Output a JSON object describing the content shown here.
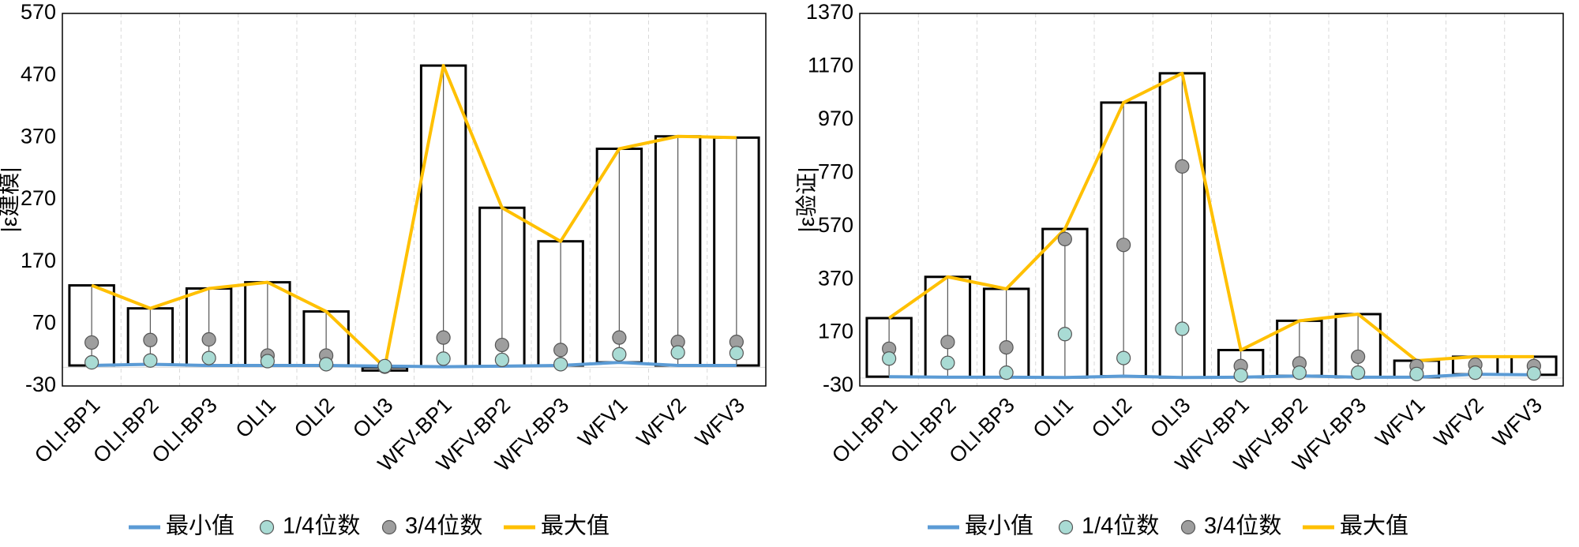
{
  "chart_data": [
    {
      "type": "box-range",
      "title": "",
      "xlabel": "",
      "ylabel": "|ε建模|",
      "ylim": [
        -30,
        570
      ],
      "yticks": [
        "-30",
        "70",
        "170",
        "270",
        "370",
        "470",
        "570"
      ],
      "categories": [
        "OLI-BP1",
        "OLI-BP2",
        "OLI-BP3",
        "OLI1",
        "OLI2",
        "OLI3",
        "WFV-BP1",
        "WFV-BP2",
        "WFV-BP3",
        "WFV1",
        "WFV2",
        "WFV3"
      ],
      "series": [
        {
          "name": "最小值",
          "values": [
            3,
            5,
            3,
            3,
            3,
            2,
            1,
            2,
            3,
            8,
            3,
            3
          ]
        },
        {
          "name": "1/4位数",
          "values": [
            8,
            11,
            15,
            10,
            5,
            2,
            14,
            12,
            5,
            21,
            24,
            23
          ]
        },
        {
          "name": "3/4位数",
          "values": [
            40,
            44,
            45,
            19,
            19,
            1,
            48,
            36,
            28,
            48,
            41,
            41
          ]
        },
        {
          "name": "最大值",
          "values": [
            132,
            95,
            127,
            137,
            90,
            0,
            486,
            257,
            203,
            352,
            372,
            370
          ]
        }
      ]
    },
    {
      "type": "box-range",
      "title": "",
      "xlabel": "",
      "ylabel": "|ε验证|",
      "ylim": [
        -30,
        1370
      ],
      "yticks": [
        "-30",
        "170",
        "370",
        "570",
        "770",
        "970",
        "1170",
        "1370"
      ],
      "categories": [
        "OLI-BP1",
        "OLI-BP2",
        "OLI-BP3",
        "OLI1",
        "OLI2",
        "OLI3",
        "WFV-BP1",
        "WFV-BP2",
        "WFV-BP3",
        "WFV1",
        "WFV2",
        "WFV3"
      ],
      "series": [
        {
          "name": "最小值",
          "values": [
            5,
            3,
            3,
            2,
            7,
            2,
            3,
            8,
            3,
            3,
            14,
            12
          ]
        },
        {
          "name": "1/4位数",
          "values": [
            73,
            57,
            20,
            165,
            75,
            185,
            10,
            20,
            20,
            15,
            20,
            17
          ]
        },
        {
          "name": "3/4位数",
          "values": [
            110,
            135,
            115,
            522,
            500,
            795,
            45,
            55,
            80,
            45,
            50,
            45
          ]
        },
        {
          "name": "最大值",
          "values": [
            225,
            380,
            335,
            560,
            1035,
            1145,
            105,
            215,
            240,
            65,
            80,
            80
          ]
        }
      ]
    }
  ],
  "legend": [
    {
      "label": "最小值",
      "kind": "line",
      "color": "#5b9bd5"
    },
    {
      "label": "1/4位数",
      "kind": "marker",
      "color": "#a9dbd4"
    },
    {
      "label": "3/4位数",
      "kind": "marker",
      "color": "#9e9e9e"
    },
    {
      "label": "最大值",
      "kind": "line",
      "color": "#ffc000"
    }
  ],
  "colors": {
    "min_line": "#5b9bd5",
    "max_line": "#ffc000",
    "q1_marker": "#a9dbd4",
    "q3_marker": "#9e9e9e",
    "box_stroke": "#000000",
    "grid": "#d9d9d9"
  }
}
